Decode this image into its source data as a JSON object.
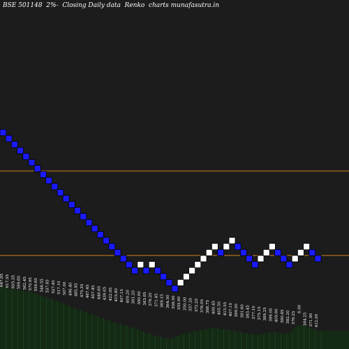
{
  "chart_data": {
    "type": "renko",
    "title": "BSE 501148  2%-  Closing Daily data  Renko  charts munafasutra.in",
    "colors": {
      "background": "#000000",
      "plot_background": "#1c1c1c",
      "down_brick": "#1a1aff",
      "up_brick": "#ffffff",
      "brick_outline": "#000000",
      "reference_line": "#d4821e",
      "volume_fill": "#142a14",
      "volume_edge": "#2e6b2e",
      "tick_label": "#ffffff"
    },
    "reference_lines": [
      "upper",
      "lower"
    ],
    "bricks": [
      "down",
      "down",
      "down",
      "down",
      "down",
      "down",
      "down",
      "down",
      "down",
      "down",
      "down",
      "down",
      "down",
      "down",
      "down",
      "down",
      "down",
      "down",
      "down",
      "down",
      "down",
      "down",
      "down",
      "down",
      "up",
      "down",
      "up",
      "down",
      "down",
      "down",
      "down",
      "up",
      "up",
      "up",
      "up",
      "up",
      "up",
      "up",
      "down",
      "up",
      "up",
      "down",
      "down",
      "down",
      "down",
      "up",
      "up",
      "up",
      "down",
      "down",
      "down",
      "up",
      "up",
      "up",
      "down",
      "down"
    ],
    "brick_levels": [
      21,
      20,
      19,
      18,
      17,
      16,
      15,
      14,
      13,
      12,
      11,
      10,
      9,
      8,
      7,
      6,
      5,
      4,
      3,
      2,
      1,
      0,
      -1,
      -2,
      -1,
      -2,
      -1,
      -2,
      -3,
      -4,
      -5,
      -4,
      -3,
      -2,
      -1,
      0,
      1,
      2,
      1,
      2,
      3,
      2,
      1,
      0,
      -1,
      0,
      1,
      2,
      1,
      0,
      -1,
      0,
      1,
      2,
      1,
      0
    ],
    "brick_labels": [
      "647.85",
      "617.55",
      "605.35",
      "599.60",
      "582.45",
      "570.95",
      "559.65",
      "548.55",
      "537.85",
      "527.45",
      "517.10",
      "507.00",
      "496.40",
      "485.85",
      "475.35",
      "467.45",
      "457.45",
      "448.60",
      "439.65",
      "422.95",
      "415.80",
      "407.15",
      "400.20",
      "391.20",
      "390.00",
      "383.85",
      "376.20",
      "371.45",
      "369.15",
      "364.50",
      "358.00",
      "355.60",
      "350.00",
      "357.20",
      "372.25",
      "376.05",
      "388.75",
      "400.45",
      "405.50",
      "413.55",
      "407.10",
      "399.50",
      "391.60",
      "383.45",
      "377.10",
      "375.15",
      "389.25",
      "396.00",
      "409.60",
      "390.85",
      "382.20",
      "376.25",
      "6.00",
      "364.25",
      "371.90",
      "412.00"
    ],
    "brick_label_offset": [
      0,
      0,
      0,
      0,
      0,
      0,
      0,
      0,
      0,
      0,
      0,
      0,
      0,
      0,
      0,
      0,
      0,
      0,
      0,
      0,
      0,
      0,
      0,
      0,
      0,
      0,
      0,
      0,
      0,
      0,
      0,
      0,
      0,
      0,
      0,
      0,
      0,
      0,
      0,
      0,
      0,
      0,
      0,
      0,
      0,
      0,
      0,
      0,
      0,
      0,
      0,
      0,
      -10,
      0,
      0,
      0
    ],
    "volume": [
      62,
      60,
      59,
      58,
      57,
      56,
      54,
      52,
      50,
      48,
      46,
      44,
      41,
      39,
      37,
      35,
      33,
      31,
      29,
      27,
      25,
      24,
      22,
      20,
      18,
      16,
      14,
      12,
      11,
      10,
      12,
      14,
      16,
      17,
      18,
      19,
      20,
      21,
      20,
      19,
      18,
      17,
      16,
      15,
      14,
      15,
      16,
      17,
      16,
      15,
      16,
      22,
      24,
      22,
      20,
      18
    ],
    "volume_units": "relative",
    "grid": false,
    "legend": "none"
  }
}
